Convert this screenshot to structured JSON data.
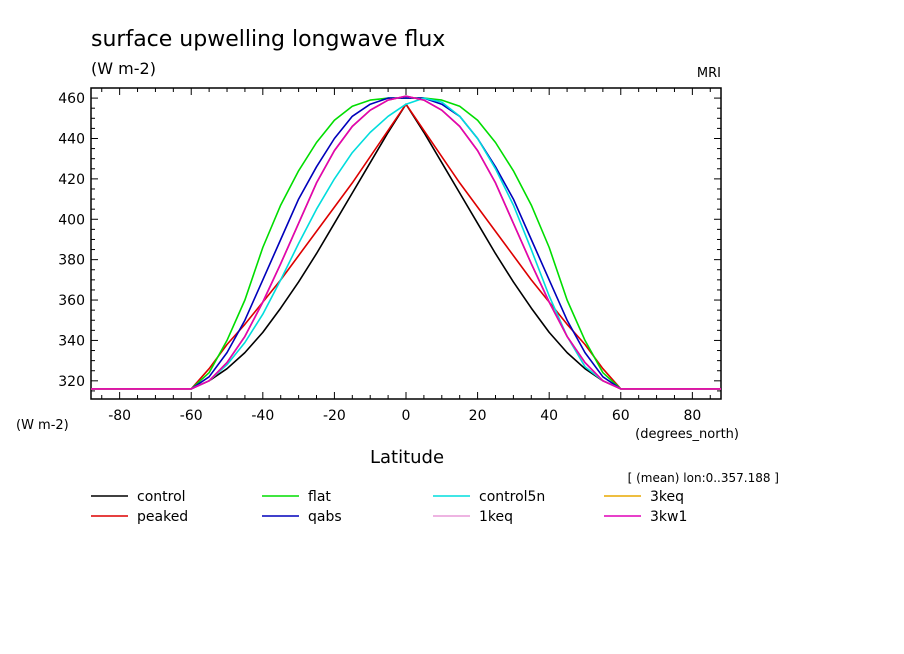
{
  "chart_data": {
    "type": "line",
    "title": "surface upwelling longwave flux",
    "subtitle": "(W m-2)",
    "source_label": "MRI",
    "ylabel_left": "(W m-2)",
    "xlabel": "Latitude",
    "x_unit_label": "(degrees_north)",
    "annotation": "[ (mean) lon:0..357.188 ]",
    "xlim": [
      -88,
      88
    ],
    "ylim": [
      311,
      465
    ],
    "x_ticks": [
      -80,
      -60,
      -40,
      -20,
      0,
      20,
      40,
      60,
      80
    ],
    "y_ticks": [
      320,
      340,
      360,
      380,
      400,
      420,
      440,
      460
    ],
    "grid": false,
    "legend_position": "bottom",
    "x": [
      -88,
      -60,
      -55,
      -50,
      -45,
      -40,
      -35,
      -30,
      -25,
      -20,
      -15,
      -10,
      -5,
      0,
      5,
      10,
      15,
      20,
      25,
      30,
      35,
      40,
      45,
      50,
      55,
      60,
      88
    ],
    "series": [
      {
        "name": "control",
        "color": "#000000",
        "values": [
          316,
          316,
          320,
          326,
          334,
          344,
          356,
          369,
          383,
          398,
          413,
          428,
          443,
          457,
          443,
          428,
          413,
          398,
          383,
          369,
          356,
          344,
          334,
          326,
          320,
          316,
          316
        ]
      },
      {
        "name": "peaked",
        "color": "#dd0000",
        "values": [
          316,
          316,
          326,
          338,
          348,
          359,
          370,
          382,
          394,
          406,
          418,
          431,
          444,
          457,
          444,
          431,
          418,
          406,
          394,
          382,
          370,
          359,
          348,
          338,
          326,
          316,
          316
        ]
      },
      {
        "name": "flat",
        "color": "#00dd00",
        "values": [
          316,
          316,
          324,
          340,
          360,
          386,
          407,
          424,
          438,
          449,
          456,
          459,
          460,
          460,
          460,
          459,
          456,
          449,
          438,
          424,
          407,
          386,
          360,
          340,
          324,
          316,
          316
        ]
      },
      {
        "name": "qabs",
        "color": "#0000bb",
        "values": [
          316,
          316,
          322,
          334,
          350,
          370,
          390,
          410,
          426,
          440,
          451,
          457,
          460,
          460,
          460,
          457,
          451,
          440,
          426,
          410,
          390,
          370,
          350,
          334,
          322,
          316,
          316
        ]
      },
      {
        "name": "control5n",
        "color": "#00dddd",
        "values": [
          316,
          316,
          320,
          328,
          339,
          353,
          370,
          388,
          405,
          420,
          433,
          443,
          451,
          457,
          460,
          458,
          451,
          440,
          425,
          407,
          385,
          362,
          342,
          327,
          320,
          316,
          316
        ]
      },
      {
        "name": "1keq",
        "color": "#e89bd8",
        "values": [
          316,
          316,
          320,
          329,
          342,
          359,
          378,
          398,
          418,
          434,
          446,
          454,
          459,
          461,
          459,
          454,
          446,
          434,
          418,
          398,
          378,
          359,
          342,
          329,
          320,
          316,
          316
        ]
      },
      {
        "name": "3keq",
        "color": "#e8a800",
        "values": [
          316,
          316,
          320,
          329,
          342,
          359,
          378,
          398,
          418,
          434,
          446,
          454,
          459,
          461,
          459,
          454,
          446,
          434,
          418,
          398,
          378,
          359,
          342,
          329,
          320,
          316,
          316
        ]
      },
      {
        "name": "3kw1",
        "color": "#e000b8",
        "values": [
          316,
          316,
          320,
          329,
          342,
          359,
          378,
          398,
          418,
          434,
          446,
          454,
          459,
          461,
          459,
          454,
          446,
          434,
          418,
          398,
          378,
          359,
          342,
          329,
          320,
          316,
          316
        ]
      }
    ]
  }
}
